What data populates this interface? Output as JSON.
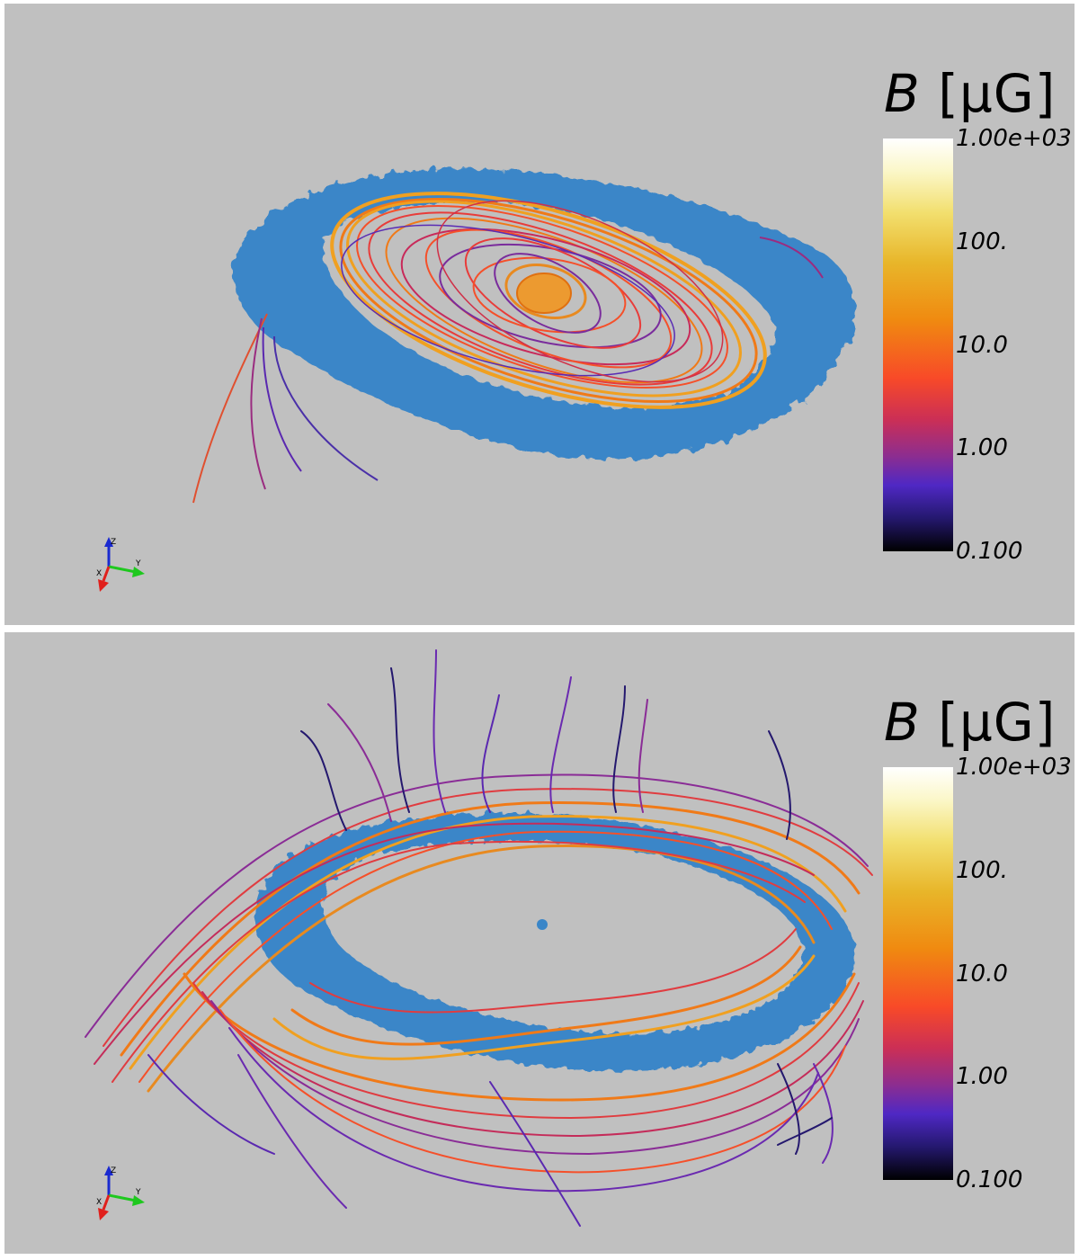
{
  "panels": [
    {
      "id": "top",
      "colorbar": {
        "title_symbol": "B",
        "title_unit": " [μG]",
        "ticks": [
          "1.00e+03",
          "100.",
          "10.0",
          "1.00",
          "0.100"
        ],
        "scale": "log",
        "range": [
          0.1,
          1000
        ]
      },
      "axes_triad": {
        "z": "Z",
        "y": "Y",
        "x": "X"
      }
    },
    {
      "id": "bottom",
      "colorbar": {
        "title_symbol": "B",
        "title_unit": " [μG]",
        "ticks": [
          "1.00e+03",
          "100.",
          "10.0",
          "1.00",
          "0.100"
        ],
        "scale": "log",
        "range": [
          0.1,
          1000
        ]
      },
      "axes_triad": {
        "z": "Z",
        "y": "Y",
        "x": "X"
      }
    }
  ],
  "colors": {
    "background": "#c0c0c0",
    "disk": "#3a86c8",
    "axis_x": "#e0201c",
    "axis_y": "#1ec81e",
    "axis_z": "#1a2ad0"
  }
}
